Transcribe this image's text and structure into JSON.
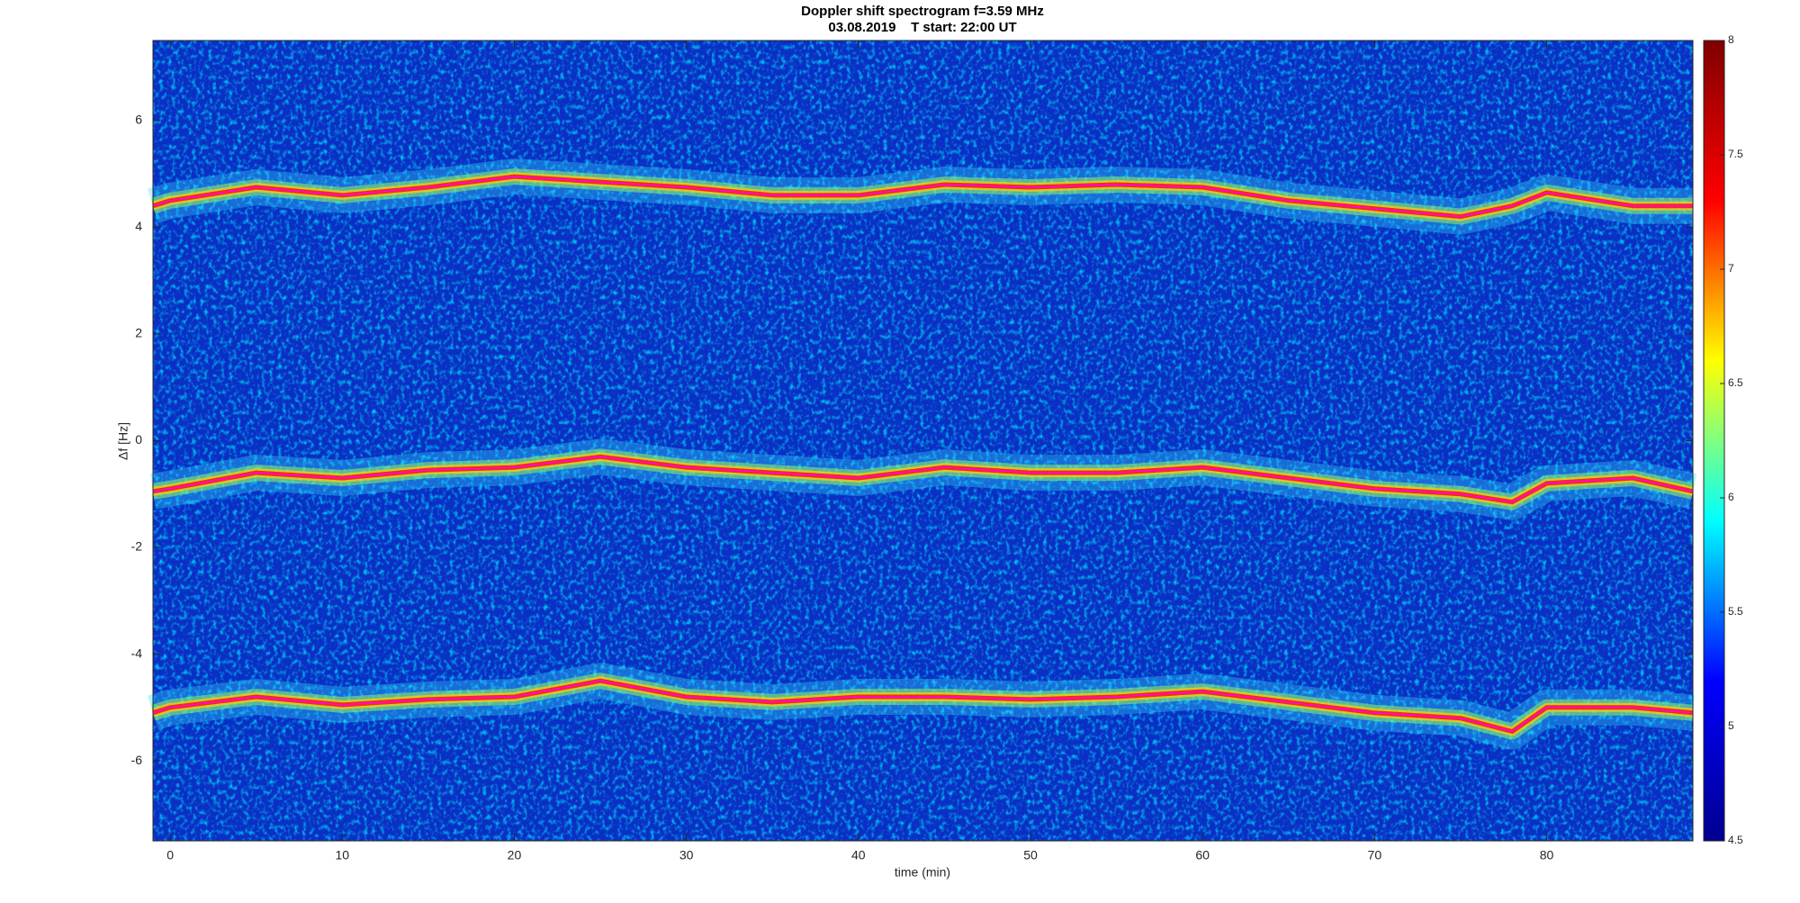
{
  "chart_data": {
    "type": "spectrogram",
    "title": "Doppler shift spectrogram f=3.59 MHz",
    "subtitle": "03.08.2019    T start: 22:00 UT",
    "x_label": "time (min)",
    "y_label": "Δf [Hz]",
    "xlim": [
      -1,
      88.5
    ],
    "ylim": [
      -7.5,
      7.5
    ],
    "xticks": [
      0,
      10,
      20,
      30,
      40,
      50,
      60,
      70,
      80
    ],
    "yticks": [
      -6,
      -4,
      -2,
      0,
      2,
      4,
      6
    ],
    "clim": [
      4.5,
      8
    ],
    "cticks": [
      4.5,
      5,
      5.5,
      6,
      6.5,
      7,
      7.5,
      8
    ],
    "colormap": [
      "#00008f",
      "#0000ff",
      "#00ffff",
      "#ffff00",
      "#ff0000",
      "#800000"
    ],
    "x": [
      -1,
      0,
      5,
      10,
      15,
      20,
      25,
      30,
      35,
      40,
      45,
      50,
      55,
      60,
      65,
      70,
      75,
      78,
      80,
      85,
      88.5
    ],
    "series": [
      {
        "color": "#ff00ff",
        "values": [
          4.4,
          4.5,
          4.75,
          4.6,
          4.75,
          4.95,
          4.85,
          4.75,
          4.6,
          4.6,
          4.8,
          4.75,
          4.8,
          4.75,
          4.5,
          4.35,
          4.2,
          4.4,
          4.65,
          4.4,
          4.4
        ]
      },
      {
        "color": "#ff00ff",
        "values": [
          -0.95,
          -0.9,
          -0.6,
          -0.7,
          -0.55,
          -0.5,
          -0.3,
          -0.5,
          -0.6,
          -0.7,
          -0.5,
          -0.6,
          -0.6,
          -0.5,
          -0.7,
          -0.9,
          -1.0,
          -1.15,
          -0.8,
          -0.7,
          -0.95
        ]
      },
      {
        "color": "#ff00ff",
        "values": [
          -5.1,
          -5.0,
          -4.8,
          -4.95,
          -4.85,
          -4.8,
          -4.5,
          -4.8,
          -4.9,
          -4.8,
          -4.8,
          -4.85,
          -4.8,
          -4.7,
          -4.9,
          -5.1,
          -5.2,
          -5.45,
          -5.0,
          -5.0,
          -5.1
        ]
      }
    ]
  }
}
